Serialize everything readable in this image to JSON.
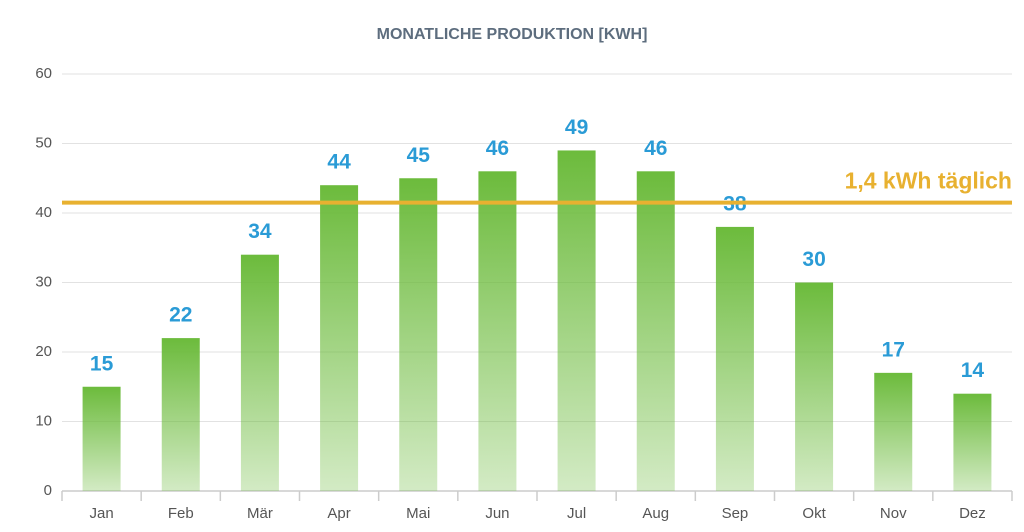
{
  "chart_data": {
    "type": "bar",
    "title": "MONATLICHE PRODUKTION [KWH]",
    "categories": [
      "Jan",
      "Feb",
      "Mär",
      "Apr",
      "Mai",
      "Jun",
      "Jul",
      "Aug",
      "Sep",
      "Okt",
      "Nov",
      "Dez"
    ],
    "values": [
      15,
      22,
      34,
      44,
      45,
      46,
      49,
      46,
      38,
      30,
      17,
      14
    ],
    "color": "#6cbb3c",
    "ylim": [
      0,
      60
    ],
    "yticks": [
      0,
      10,
      20,
      30,
      40,
      50,
      60
    ],
    "grid": true,
    "reference_line": {
      "value": 41.5,
      "label": "1,4 kWh täglich",
      "color": "#e8b130"
    }
  }
}
